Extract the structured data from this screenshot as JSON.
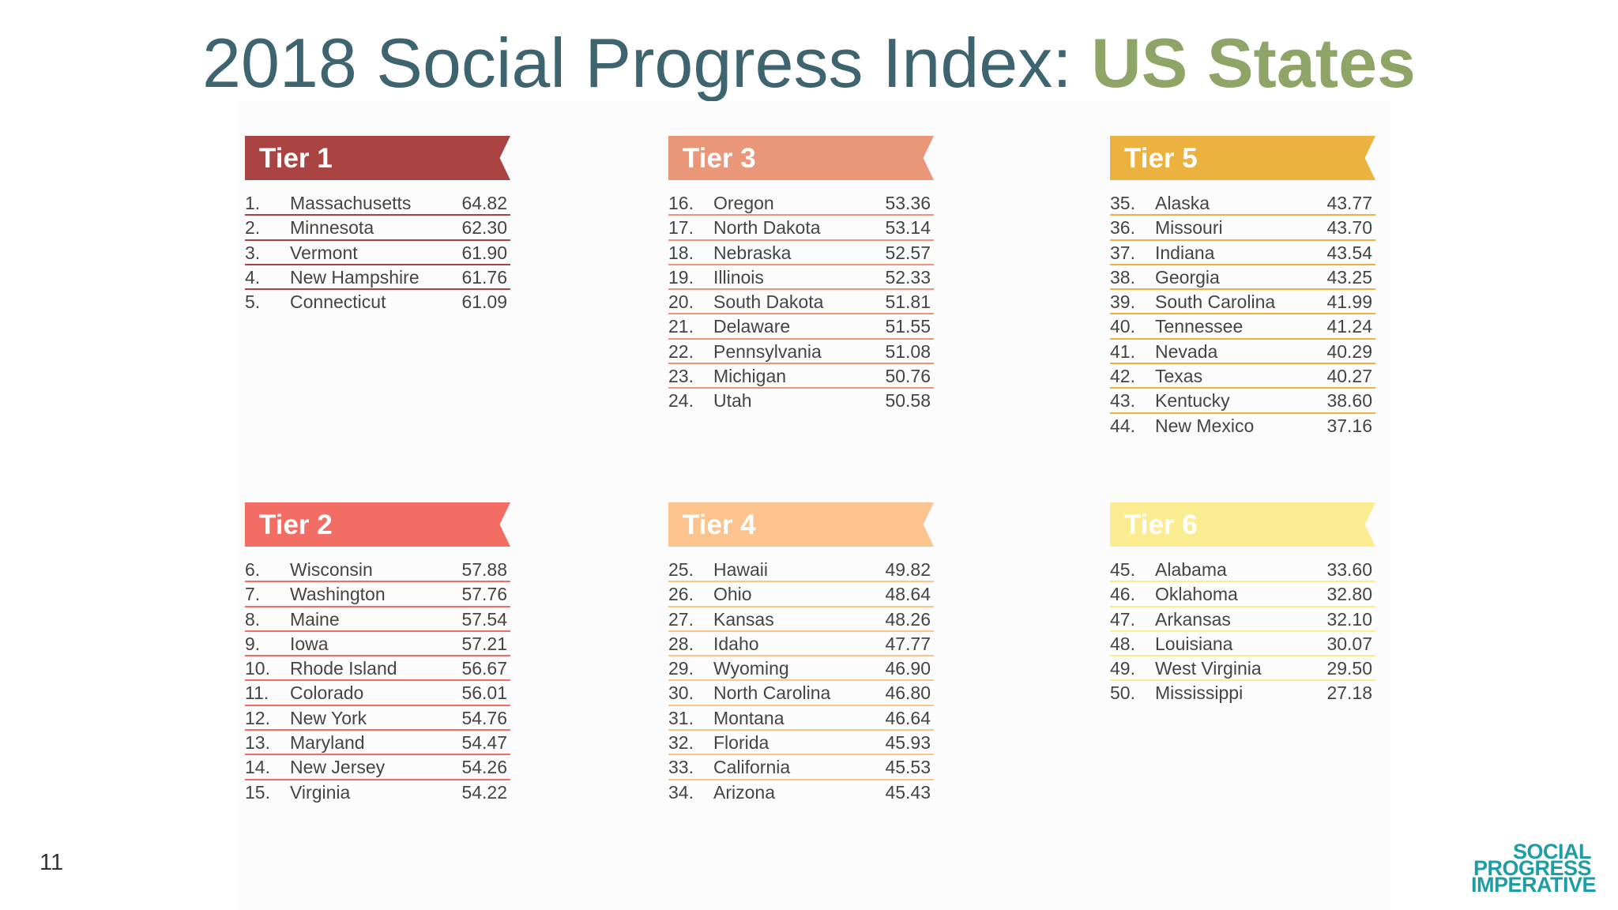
{
  "title": {
    "main": "2018 Social Progress Index: ",
    "accent": "US States"
  },
  "page_number": "11",
  "logo": {
    "line1": "SOCIAL",
    "line2": "PROGRESS",
    "line3": "IMPERATIVE"
  },
  "tiers": [
    {
      "label": "Tier 1",
      "color": "#a94442",
      "rows": [
        [
          "1.",
          "Massachusetts",
          "64.82"
        ],
        [
          "2.",
          "Minnesota",
          "62.30"
        ],
        [
          "3.",
          "Vermont",
          "61.90"
        ],
        [
          "4.",
          "New Hampshire",
          "61.76"
        ],
        [
          "5.",
          "Connecticut",
          "61.09"
        ]
      ]
    },
    {
      "label": "Tier 2",
      "color": "#f26e65",
      "rows": [
        [
          "6.",
          "Wisconsin",
          "57.88"
        ],
        [
          "7.",
          "Washington",
          "57.76"
        ],
        [
          "8.",
          "Maine",
          "57.54"
        ],
        [
          "9.",
          "Iowa",
          "57.21"
        ],
        [
          "10.",
          "Rhode Island",
          "56.67"
        ],
        [
          "11.",
          "Colorado",
          "56.01"
        ],
        [
          "12.",
          "New York",
          "54.76"
        ],
        [
          "13.",
          "Maryland",
          "54.47"
        ],
        [
          "14.",
          "New Jersey",
          "54.26"
        ],
        [
          "15.",
          "Virginia",
          "54.22"
        ]
      ]
    },
    {
      "label": "Tier 3",
      "color": "#e99679",
      "rows": [
        [
          "16.",
          "Oregon",
          "53.36"
        ],
        [
          "17.",
          "North Dakota",
          "53.14"
        ],
        [
          "18.",
          "Nebraska",
          "52.57"
        ],
        [
          "19.",
          "Illinois",
          "52.33"
        ],
        [
          "20.",
          "South Dakota",
          "51.81"
        ],
        [
          "21.",
          "Delaware",
          "51.55"
        ],
        [
          "22.",
          "Pennsylvania",
          "51.08"
        ],
        [
          "23.",
          "Michigan",
          "50.76"
        ],
        [
          "24.",
          "Utah",
          "50.58"
        ]
      ]
    },
    {
      "label": "Tier 4",
      "color": "#fbc48f",
      "rows": [
        [
          "25.",
          "Hawaii",
          "49.82"
        ],
        [
          "26.",
          "Ohio",
          "48.64"
        ],
        [
          "27.",
          "Kansas",
          "48.26"
        ],
        [
          "28.",
          "Idaho",
          "47.77"
        ],
        [
          "29.",
          "Wyoming",
          "46.90"
        ],
        [
          "30.",
          "North Carolina",
          "46.80"
        ],
        [
          "31.",
          "Montana",
          "46.64"
        ],
        [
          "32.",
          "Florida",
          "45.93"
        ],
        [
          "33.",
          "California",
          "45.53"
        ],
        [
          "34.",
          "Arizona",
          "45.43"
        ]
      ]
    },
    {
      "label": "Tier 5",
      "color": "#ebb240",
      "rows": [
        [
          "35.",
          "Alaska",
          "43.77"
        ],
        [
          "36.",
          "Missouri",
          "43.70"
        ],
        [
          "37.",
          "Indiana",
          "43.54"
        ],
        [
          "38.",
          "Georgia",
          "43.25"
        ],
        [
          "39.",
          "South Carolina",
          "41.99"
        ],
        [
          "40.",
          "Tennessee",
          "41.24"
        ],
        [
          "41.",
          "Nevada",
          "40.29"
        ],
        [
          "42.",
          "Texas",
          "40.27"
        ],
        [
          "43.",
          "Kentucky",
          "38.60"
        ],
        [
          "44.",
          "New Mexico",
          "37.16"
        ]
      ]
    },
    {
      "label": "Tier 6",
      "color": "#fbeb91",
      "rows": [
        [
          "45.",
          "Alabama",
          "33.60"
        ],
        [
          "46.",
          "Oklahoma",
          "32.80"
        ],
        [
          "47.",
          "Arkansas",
          "32.10"
        ],
        [
          "48.",
          "Louisiana",
          "30.07"
        ],
        [
          "49.",
          "West Virginia",
          "29.50"
        ],
        [
          "50.",
          "Mississippi",
          "27.18"
        ]
      ]
    }
  ]
}
